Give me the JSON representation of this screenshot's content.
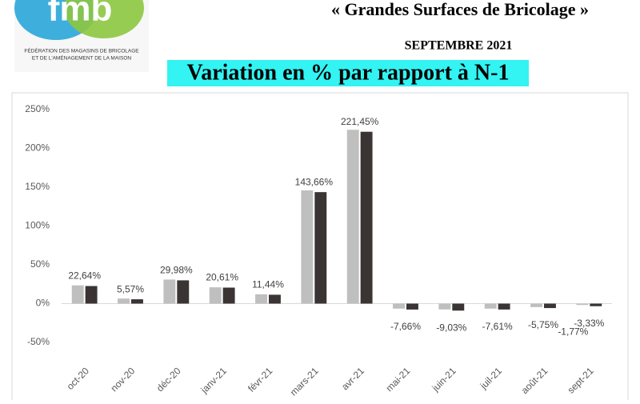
{
  "header": {
    "logo": "fmb",
    "logo_lines": [
      "FÉDÉRATION DES MAGASINS DE BRICOLAGE",
      "ET DE L'AMÉNAGEMENT DE LA MAISON"
    ],
    "title": "« Grandes Surfaces de Bricolage »",
    "period": "SEPTEMBRE 2021"
  },
  "chart_data": {
    "type": "bar",
    "title": "Variation en % par rapport à N-1",
    "categories": [
      "oct-20",
      "nov-20",
      "déc-20",
      "janv-21",
      "févr-21",
      "mars-21",
      "avr-21",
      "mai-21",
      "juin-21",
      "juil-21",
      "août-21",
      "sept-21"
    ],
    "series": [
      {
        "color": "#bfbfbf",
        "values": [
          23.5,
          6.5,
          31,
          21,
          12,
          146,
          224,
          -6.5,
          -7.5,
          -6.5,
          -4.5,
          -1.77
        ],
        "value_labels": [
          null,
          null,
          null,
          null,
          null,
          null,
          null,
          null,
          null,
          null,
          null,
          "-1,77%"
        ]
      },
      {
        "color": "#3a3434",
        "values": [
          22.64,
          5.57,
          29.98,
          20.61,
          11.44,
          143.66,
          221.45,
          -7.66,
          -9.03,
          -7.61,
          -5.75,
          -3.33
        ],
        "value_labels": [
          "22,64%",
          "5,57%",
          "29,98%",
          "20,61%",
          "11,44%",
          "143,66%",
          "221,45%",
          "-7,66%",
          "-9,03%",
          "-7,61%",
          "-5,75%",
          "-3,33%"
        ]
      }
    ],
    "ylim": [
      -50,
      250
    ],
    "yticks": [
      {
        "value": -50,
        "label": "-50%"
      },
      {
        "value": 0,
        "label": "0%"
      },
      {
        "value": 50,
        "label": "50%"
      },
      {
        "value": 100,
        "label": "100%"
      },
      {
        "value": 150,
        "label": "150%"
      },
      {
        "value": 200,
        "label": "200%"
      },
      {
        "value": 250,
        "label": "250%"
      }
    ],
    "grid": false
  }
}
